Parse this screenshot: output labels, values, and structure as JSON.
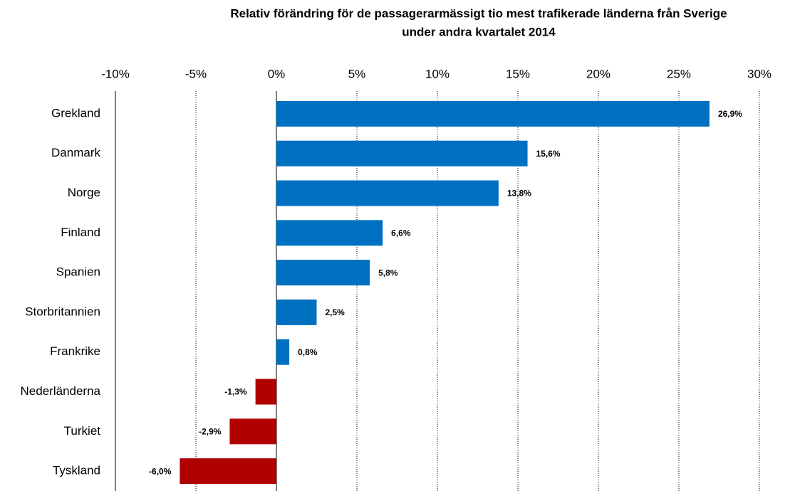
{
  "chart_data": {
    "type": "barh",
    "title": [
      "Relativ förändring för de passagerarmässigt tio mest trafikerade länderna  från Sverige",
      "under  andra kvartalet 2014"
    ],
    "categories": [
      "Grekland",
      "Danmark",
      "Norge",
      "Finland",
      "Spanien",
      "Storbritannien",
      "Frankrike",
      "Nederländerna",
      "Turkiet",
      "Tyskland"
    ],
    "values": [
      26.9,
      15.6,
      13.8,
      6.6,
      5.8,
      2.5,
      0.8,
      -1.3,
      -2.9,
      -6.0
    ],
    "value_labels": [
      "26,9%",
      "15,6%",
      "13,8%",
      "6,6%",
      "5,8%",
      "2,5%",
      "0,8%",
      "-1,3%",
      "-2,9%",
      "-6,0%"
    ],
    "colors": [
      "#0070c0",
      "#0070c0",
      "#0070c0",
      "#0070c0",
      "#0070c0",
      "#0070c0",
      "#0070c0",
      "#b00000",
      "#b00000",
      "#b00000"
    ],
    "xlim": [
      -10,
      30
    ],
    "xticks": [
      {
        "value": -10,
        "label": "-10%"
      },
      {
        "value": -5,
        "label": "-5%"
      },
      {
        "value": 0,
        "label": "0%"
      },
      {
        "value": 5,
        "label": "5%"
      },
      {
        "value": 10,
        "label": "10%"
      },
      {
        "value": 15,
        "label": "15%"
      },
      {
        "value": 20,
        "label": "20%"
      },
      {
        "value": 25,
        "label": "25%"
      },
      {
        "value": 30,
        "label": "30%"
      }
    ],
    "grid": true
  }
}
